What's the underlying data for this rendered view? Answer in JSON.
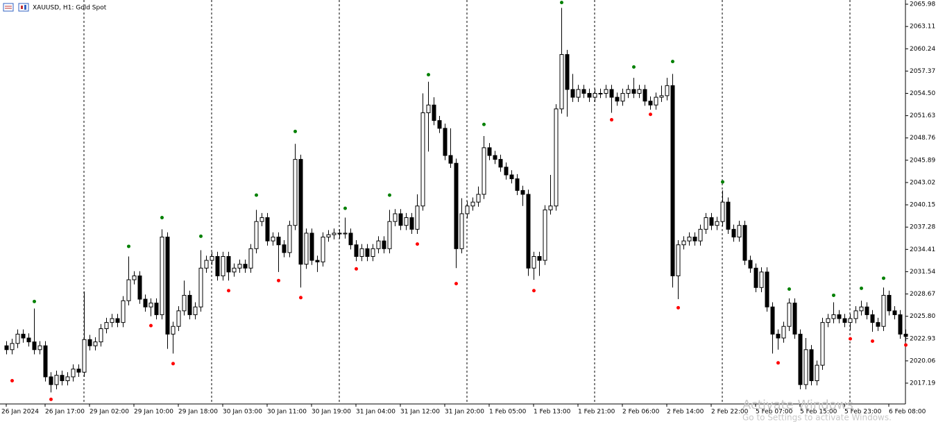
{
  "chart_data": {
    "type": "candlestick",
    "title": "XAUUSD, H1: Gold Spot",
    "categories": [
      "26 Jan 2024",
      null,
      null,
      null,
      null,
      null,
      null,
      "26 Jan 17:00",
      null,
      null,
      null,
      null,
      null,
      null,
      null,
      "29 Jan 02:00",
      null,
      null,
      null,
      null,
      null,
      null,
      null,
      "29 Jan 10:00",
      null,
      null,
      null,
      null,
      null,
      null,
      null,
      "29 Jan 18:00",
      null,
      null,
      null,
      null,
      null,
      null,
      null,
      "30 Jan 03:00",
      null,
      null,
      null,
      null,
      null,
      null,
      null,
      "30 Jan 11:00",
      null,
      null,
      null,
      null,
      null,
      null,
      null,
      "30 Jan 19:00",
      null,
      null,
      null,
      null,
      null,
      null,
      null,
      "31 Jan 04:00",
      null,
      null,
      null,
      null,
      null,
      null,
      null,
      "31 Jan 12:00",
      null,
      null,
      null,
      null,
      null,
      null,
      null,
      "31 Jan 20:00",
      null,
      null,
      null,
      null,
      null,
      null,
      null,
      "1 Feb 05:00",
      null,
      null,
      null,
      null,
      null,
      null,
      null,
      "1 Feb 13:00",
      null,
      null,
      null,
      null,
      null,
      null,
      null,
      "1 Feb 21:00",
      null,
      null,
      null,
      null,
      null,
      null,
      null,
      "2 Feb 06:00",
      null,
      null,
      null,
      null,
      null,
      null,
      null,
      "2 Feb 14:00",
      null,
      null,
      null,
      null,
      null,
      null,
      null,
      "2 Feb 22:00",
      null,
      null,
      null,
      null,
      null,
      null,
      null,
      "5 Feb 07:00",
      null,
      null,
      null,
      null,
      null,
      null,
      null,
      "5 Feb 15:00",
      null,
      null,
      null,
      null,
      null,
      null,
      null,
      "5 Feb 23:00",
      null,
      null,
      null,
      null,
      null,
      null,
      null,
      "6 Feb 08:00",
      null,
      null,
      null
    ],
    "open": [
      2022.0,
      2021.5,
      2022.3,
      2023.5,
      2023.0,
      2022.5,
      2021.5,
      2022.0,
      2018.0,
      2017.0,
      2018.2,
      2017.5,
      2018.0,
      2019.0,
      2018.6,
      2022.8,
      2022.0,
      2022.5,
      2024.2,
      2025.0,
      2025.5,
      2025.0,
      2027.8,
      2030.5,
      2031.0,
      2028.0,
      2027.0,
      2027.5,
      2026.0,
      2036.0,
      2023.5,
      2024.5,
      2026.5,
      2028.5,
      2026.0,
      2027.0,
      2032.0,
      2033.0,
      2033.5,
      2031.0,
      2033.5,
      2031.5,
      2032.0,
      2032.5,
      2032.0,
      2034.5,
      2038.0,
      2038.5,
      2035.5,
      2036.0,
      2035.0,
      2034.0,
      2037.5,
      2046.0,
      2032.5,
      2036.5,
      2033.0,
      2032.8,
      2036.0,
      2036.3,
      2036.5,
      2036.4,
      2036.5,
      2035.0,
      2033.5,
      2034.5,
      2033.5,
      2034.5,
      2035.5,
      2034.5,
      2038.0,
      2039.0,
      2037.5,
      2038.5,
      2037.0,
      2040.0,
      2052.0,
      2053.0,
      2051.0,
      2050.0,
      2046.5,
      2045.5,
      2034.5,
      2039.0,
      2040.0,
      2040.5,
      2041.5,
      2047.5,
      2046.5,
      2046.0,
      2045.0,
      2044.0,
      2043.5,
      2042.0,
      2041.5,
      2032.0,
      2033.5,
      2033.0,
      2039.5,
      2040.0,
      2052.5,
      2059.5,
      2055.0,
      2054.0,
      2055.0,
      2054.5,
      2054.0,
      2054.5,
      2054.5,
      2055.0,
      2054.0,
      2053.5,
      2054.5,
      2055.0,
      2054.5,
      2055.0,
      2053.5,
      2053.0,
      2054.0,
      2054.2,
      2055.5,
      2031.0,
      2035.0,
      2035.5,
      2036.0,
      2035.5,
      2037.0,
      2038.5,
      2037.5,
      2038.0,
      2040.5,
      2037.0,
      2036.0,
      2037.5,
      2033.0,
      2032.0,
      2029.5,
      2031.5,
      2027.0,
      2023.5,
      2023.0,
      2024.5,
      2027.5,
      2023.5,
      2017.0,
      2021.5,
      2017.5,
      2019.5,
      2025.0,
      2025.5,
      2026.0,
      2025.5,
      2025.0,
      2025.5,
      2026.5,
      2027.0,
      2026.0,
      2025.0,
      2024.5,
      2028.5,
      2026.5,
      2026.0,
      2023.5
    ],
    "high": [
      2022.6,
      2022.9,
      2024.1,
      2024.1,
      2023.6,
      2026.8,
      2022.6,
      2022.6,
      2018.6,
      2018.8,
      2018.8,
      2018.6,
      2019.6,
      2019.6,
      2029.0,
      2023.4,
      2023.1,
      2024.8,
      2025.6,
      2026.1,
      2026.1,
      2028.4,
      2033.5,
      2031.6,
      2031.6,
      2028.6,
      2028.1,
      2028.1,
      2037.0,
      2036.6,
      2025.1,
      2027.1,
      2030.4,
      2029.1,
      2027.6,
      2034.3,
      2033.6,
      2034.1,
      2034.1,
      2034.1,
      2034.1,
      2032.6,
      2033.1,
      2033.1,
      2035.1,
      2039.5,
      2039.1,
      2039.1,
      2036.6,
      2036.6,
      2035.6,
      2038.1,
      2048.0,
      2046.6,
      2037.1,
      2037.1,
      2033.6,
      2036.6,
      2036.9,
      2037.1,
      2037.0,
      2038.5,
      2037.1,
      2035.6,
      2035.1,
      2035.1,
      2035.1,
      2036.1,
      2036.1,
      2039.5,
      2039.6,
      2039.6,
      2039.1,
      2039.1,
      2041.5,
      2054.5,
      2056.0,
      2054.0,
      2051.6,
      2050.6,
      2050.0,
      2046.1,
      2041.0,
      2040.6,
      2041.1,
      2042.5,
      2049.0,
      2048.1,
      2047.1,
      2046.6,
      2045.6,
      2044.6,
      2044.1,
      2042.6,
      2042.1,
      2034.1,
      2034.1,
      2040.1,
      2044.0,
      2053.1,
      2065.5,
      2060.1,
      2057.0,
      2055.6,
      2055.6,
      2055.1,
      2055.1,
      2055.1,
      2055.6,
      2055.6,
      2054.6,
      2055.1,
      2055.6,
      2056.5,
      2055.6,
      2055.6,
      2054.1,
      2054.6,
      2055.5,
      2056.5,
      2057.0,
      2035.6,
      2036.1,
      2036.6,
      2036.6,
      2037.6,
      2039.1,
      2039.1,
      2038.6,
      2042.0,
      2041.1,
      2037.6,
      2038.1,
      2038.1,
      2033.6,
      2032.6,
      2032.1,
      2032.1,
      2027.6,
      2024.1,
      2025.1,
      2028.1,
      2028.1,
      2024.1,
      2023.0,
      2022.1,
      2020.1,
      2025.6,
      2026.1,
      2027.6,
      2026.6,
      2026.1,
      2026.1,
      2027.1,
      2027.8,
      2027.6,
      2026.6,
      2025.6,
      2029.5,
      2029.1,
      2027.1,
      2026.6,
      2024.1
    ],
    "low": [
      2020.9,
      2020.9,
      2021.7,
      2022.4,
      2021.9,
      2020.9,
      2020.9,
      2017.4,
      2016.0,
      2016.4,
      2016.9,
      2016.9,
      2017.4,
      2018.0,
      2018.0,
      2021.4,
      2021.4,
      2021.9,
      2023.6,
      2024.4,
      2024.4,
      2024.4,
      2027.2,
      2029.9,
      2027.4,
      2026.4,
      2025.8,
      2025.4,
      2025.4,
      2021.6,
      2021.0,
      2023.9,
      2025.9,
      2025.4,
      2025.4,
      2026.4,
      2031.4,
      2032.4,
      2030.4,
      2030.4,
      2030.4,
      2030.9,
      2031.4,
      2031.4,
      2031.4,
      2033.9,
      2037.4,
      2034.9,
      2034.9,
      2031.5,
      2033.4,
      2033.4,
      2036.9,
      2029.5,
      2031.9,
      2032.4,
      2031.5,
      2032.2,
      2035.4,
      2035.7,
      2035.8,
      2035.8,
      2034.4,
      2032.9,
      2032.9,
      2032.9,
      2032.9,
      2033.9,
      2033.9,
      2033.9,
      2037.4,
      2036.9,
      2036.9,
      2036.4,
      2036.4,
      2039.4,
      2047.0,
      2050.4,
      2049.4,
      2045.9,
      2044.9,
      2032.0,
      2033.9,
      2038.4,
      2039.4,
      2039.9,
      2040.9,
      2045.9,
      2045.4,
      2044.4,
      2043.4,
      2042.9,
      2041.4,
      2040.0,
      2031.0,
      2030.5,
      2031.0,
      2032.4,
      2038.9,
      2039.4,
      2051.9,
      2051.5,
      2053.4,
      2053.4,
      2053.9,
      2053.4,
      2053.4,
      2053.9,
      2053.9,
      2052.0,
      2052.9,
      2052.9,
      2053.9,
      2053.9,
      2053.9,
      2052.9,
      2052.4,
      2052.4,
      2053.4,
      2053.6,
      2029.5,
      2028.0,
      2034.4,
      2034.9,
      2034.9,
      2034.9,
      2036.4,
      2036.9,
      2036.9,
      2037.4,
      2036.4,
      2035.4,
      2035.4,
      2032.4,
      2031.4,
      2028.9,
      2028.9,
      2026.4,
      2021.0,
      2021.5,
      2022.4,
      2023.9,
      2022.9,
      2016.4,
      2016.4,
      2016.9,
      2016.9,
      2018.9,
      2024.4,
      2024.9,
      2024.9,
      2024.4,
      2024.0,
      2024.9,
      2025.9,
      2025.4,
      2023.8,
      2023.9,
      2023.9,
      2025.9,
      2025.4,
      2022.9,
      2022.6
    ],
    "close": [
      2021.5,
      2022.3,
      2023.5,
      2023.0,
      2022.5,
      2021.5,
      2022.0,
      2018.0,
      2017.0,
      2018.2,
      2017.5,
      2018.0,
      2019.0,
      2018.6,
      2022.8,
      2022.0,
      2022.5,
      2024.2,
      2025.0,
      2025.5,
      2025.0,
      2027.8,
      2030.5,
      2031.0,
      2028.0,
      2027.0,
      2027.5,
      2026.0,
      2036.0,
      2023.5,
      2024.5,
      2026.5,
      2028.5,
      2026.0,
      2027.0,
      2032.0,
      2033.0,
      2033.5,
      2031.0,
      2033.5,
      2031.5,
      2032.0,
      2032.5,
      2032.0,
      2034.5,
      2038.0,
      2038.5,
      2035.5,
      2036.0,
      2035.0,
      2034.0,
      2037.5,
      2046.0,
      2032.5,
      2036.5,
      2033.0,
      2032.8,
      2036.0,
      2036.3,
      2036.5,
      2036.4,
      2036.5,
      2035.0,
      2033.5,
      2034.5,
      2033.5,
      2034.5,
      2035.5,
      2034.5,
      2038.0,
      2039.0,
      2037.5,
      2038.5,
      2037.0,
      2040.0,
      2052.0,
      2053.0,
      2051.0,
      2050.0,
      2046.5,
      2045.5,
      2034.5,
      2039.0,
      2040.0,
      2040.5,
      2041.5,
      2047.5,
      2046.5,
      2046.0,
      2045.0,
      2044.0,
      2043.5,
      2042.0,
      2041.5,
      2032.0,
      2033.5,
      2033.0,
      2039.5,
      2040.0,
      2052.5,
      2059.5,
      2055.0,
      2054.0,
      2055.0,
      2054.5,
      2054.0,
      2054.5,
      2054.5,
      2055.0,
      2054.0,
      2053.5,
      2054.5,
      2055.0,
      2054.5,
      2055.0,
      2053.5,
      2053.0,
      2054.0,
      2054.2,
      2055.5,
      2031.0,
      2035.0,
      2035.5,
      2036.0,
      2035.5,
      2037.0,
      2038.5,
      2037.5,
      2038.0,
      2040.5,
      2037.0,
      2036.0,
      2037.5,
      2033.0,
      2032.0,
      2029.5,
      2031.5,
      2027.0,
      2023.5,
      2023.0,
      2024.5,
      2027.5,
      2023.5,
      2017.0,
      2021.5,
      2017.5,
      2019.5,
      2025.0,
      2025.5,
      2026.0,
      2025.5,
      2025.0,
      2025.5,
      2026.5,
      2027.0,
      2026.0,
      2025.0,
      2024.5,
      2028.5,
      2026.5,
      2026.0,
      2023.5,
      2023.2
    ],
    "fractals_up": {
      "color": "#008000",
      "values": [
        null,
        null,
        null,
        null,
        null,
        2027.7,
        null,
        null,
        null,
        null,
        null,
        null,
        null,
        null,
        null,
        null,
        null,
        null,
        null,
        null,
        null,
        null,
        2034.8,
        null,
        null,
        null,
        null,
        null,
        2038.5,
        null,
        null,
        null,
        null,
        null,
        null,
        2036.1,
        null,
        null,
        null,
        null,
        null,
        null,
        null,
        null,
        null,
        2041.4,
        null,
        null,
        null,
        null,
        null,
        null,
        2049.6,
        null,
        null,
        null,
        null,
        null,
        null,
        null,
        null,
        2039.7,
        null,
        null,
        null,
        null,
        null,
        null,
        null,
        2041.4,
        null,
        null,
        null,
        null,
        null,
        null,
        2056.9,
        null,
        null,
        null,
        null,
        null,
        null,
        null,
        null,
        null,
        2050.5,
        null,
        null,
        null,
        null,
        null,
        null,
        null,
        null,
        null,
        null,
        null,
        null,
        null,
        2066.2,
        null,
        null,
        null,
        null,
        null,
        null,
        null,
        null,
        null,
        null,
        null,
        null,
        2057.9,
        null,
        null,
        null,
        null,
        null,
        null,
        2058.6,
        null,
        null,
        null,
        null,
        null,
        null,
        null,
        null,
        2043.1,
        null,
        null,
        null,
        null,
        null,
        null,
        null,
        null,
        null,
        null,
        null,
        2029.3,
        null,
        null,
        null,
        null,
        null,
        null,
        null,
        2028.5,
        null,
        null,
        null,
        null,
        2029.4,
        null,
        null,
        null,
        2030.7,
        null,
        null,
        null,
        null
      ]
    },
    "fractals_down": {
      "color": "#ff0000",
      "values": [
        null,
        2017.5,
        null,
        null,
        null,
        null,
        null,
        null,
        2015.1,
        null,
        null,
        null,
        null,
        null,
        null,
        null,
        null,
        null,
        null,
        null,
        null,
        null,
        null,
        null,
        null,
        null,
        2024.6,
        null,
        null,
        null,
        2019.7,
        null,
        null,
        null,
        null,
        null,
        null,
        null,
        null,
        null,
        2029.1,
        null,
        null,
        null,
        null,
        null,
        null,
        null,
        null,
        2030.4,
        null,
        null,
        null,
        2028.2,
        null,
        null,
        null,
        null,
        null,
        null,
        null,
        null,
        null,
        2031.9,
        null,
        null,
        null,
        null,
        null,
        null,
        null,
        null,
        null,
        null,
        2035.1,
        null,
        null,
        null,
        null,
        null,
        null,
        2030.0,
        null,
        null,
        null,
        null,
        null,
        null,
        null,
        null,
        null,
        null,
        null,
        null,
        null,
        2029.1,
        null,
        null,
        null,
        null,
        null,
        null,
        null,
        null,
        null,
        null,
        null,
        null,
        null,
        2051.1,
        null,
        null,
        null,
        null,
        null,
        null,
        2051.8,
        null,
        null,
        null,
        null,
        2026.9,
        null,
        null,
        null,
        null,
        null,
        null,
        null,
        null,
        null,
        null,
        null,
        null,
        null,
        null,
        null,
        null,
        null,
        2019.8,
        null,
        null,
        null,
        null,
        null,
        null,
        null,
        null,
        null,
        null,
        null,
        null,
        2022.9,
        null,
        null,
        null,
        2022.6,
        null,
        null,
        null,
        null,
        null,
        2022.1
      ]
    },
    "bull_color": "#ffffff",
    "bear_color": "#000000",
    "outline_color": "#000000",
    "ylim": [
      2014.51,
      2066.52
    ],
    "yticks": [
      2065.98,
      2063.11,
      2060.24,
      2057.37,
      {
        "value": 2054.5,
        "label": "2054.50"
      },
      2051.63,
      2048.76,
      2045.89,
      2043.02,
      2040.15,
      2037.28,
      2034.41,
      2031.54,
      2028.67,
      {
        "value": 2025.8,
        "label": "2025.80"
      },
      2022.93,
      2020.06,
      2017.19
    ],
    "period_separators": true
  },
  "watermark": {
    "line1": "Activate Windows",
    "line2": "Go to Settings to activate Windows."
  }
}
